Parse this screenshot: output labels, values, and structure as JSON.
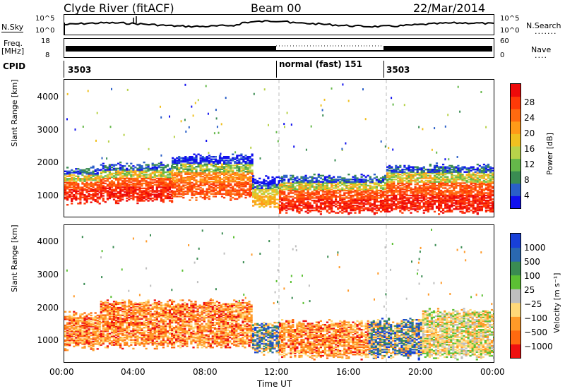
{
  "header": {
    "station": "Clyde River (fitACF)",
    "beam": "Beam 00",
    "date": "22/Mar/2014"
  },
  "noise_panel": {
    "left_label": "N.Sky",
    "right_label": "N.Search",
    "left_ticks": [
      "10^5",
      "10^0"
    ],
    "right_ticks": [
      "10^5",
      "10^0"
    ]
  },
  "freq_panel": {
    "left_label": "Freq.",
    "left_unit": "[MHz]",
    "right_label": "Nave",
    "left_ticks": [
      "18",
      "8"
    ],
    "right_ticks": [
      "60",
      "0"
    ]
  },
  "cpid_panel": {
    "label": "CPID",
    "segments": [
      {
        "start_hour": 0,
        "text": "3503"
      },
      {
        "start_hour": 12,
        "text": "normal (fast) 151"
      },
      {
        "start_hour": 18,
        "text": "3503"
      }
    ]
  },
  "x_axis": {
    "label": "Time UT",
    "ticks": [
      "00:00",
      "04:00",
      "08:00",
      "12:00",
      "16:00",
      "20:00",
      "00:00"
    ]
  },
  "chart_data": [
    {
      "type": "heatmap",
      "title": "",
      "xlabel": "Time UT",
      "ylabel": "Slant Range [km]",
      "x_range_hours": [
        0,
        24
      ],
      "ylim": [
        180,
        4600
      ],
      "y_ticks": [
        1000,
        2000,
        3000,
        4000
      ],
      "colorbar": {
        "label": "Power [dB]",
        "ticks": [
          "4",
          "8",
          "12",
          "16",
          "20",
          "24",
          "28"
        ],
        "colors": [
          "#1010ee",
          "#2a5fc8",
          "#3a8c52",
          "#65b84a",
          "#b8d24a",
          "#f0c020",
          "#ff9a18",
          "#ff6a10",
          "#ff3a08",
          "#ee0a0a"
        ]
      },
      "echo_bands": [
        {
          "t0": 0.0,
          "t1": 2.0,
          "r_low": 750,
          "r_high": 1600,
          "level": "high"
        },
        {
          "t0": 2.0,
          "t1": 6.0,
          "r_low": 800,
          "r_high": 1750,
          "level": "high"
        },
        {
          "t0": 6.0,
          "t1": 10.5,
          "r_low": 900,
          "r_high": 2000,
          "level": "medium"
        },
        {
          "t0": 10.5,
          "t1": 12.0,
          "r_low": 600,
          "r_high": 1300,
          "level": "low"
        },
        {
          "t0": 12.0,
          "t1": 18.0,
          "r_low": 450,
          "r_high": 1350,
          "level": "high"
        },
        {
          "t0": 18.0,
          "t1": 24.0,
          "r_low": 450,
          "r_high": 1700,
          "level": "high"
        }
      ]
    },
    {
      "type": "heatmap",
      "title": "",
      "xlabel": "Time UT",
      "ylabel": "Slant Range [km]",
      "x_range_hours": [
        0,
        24
      ],
      "ylim": [
        180,
        4600
      ],
      "y_ticks": [
        1000,
        2000,
        3000,
        4000
      ],
      "colorbar": {
        "label": "Velocity [m s⁻¹]",
        "ticks": [
          "1000",
          "500",
          "100",
          "25",
          "−25",
          "−100",
          "−500",
          "−1000"
        ],
        "colors": [
          "#1840d8",
          "#2a68b0",
          "#3a8c52",
          "#5cc034",
          "#bebebe",
          "#ffd878",
          "#ff9a28",
          "#ff6a10",
          "#ee1010"
        ]
      },
      "echo_bands": [
        {
          "t0": 0.0,
          "t1": 2.0,
          "r_low": 750,
          "r_high": 1600,
          "flow": "away"
        },
        {
          "t0": 2.0,
          "t1": 10.5,
          "r_low": 800,
          "r_high": 2000,
          "flow": "away"
        },
        {
          "t0": 10.5,
          "t1": 12.0,
          "r_low": 600,
          "r_high": 1300,
          "flow": "mixed"
        },
        {
          "t0": 12.0,
          "t1": 17.0,
          "r_low": 450,
          "r_high": 1350,
          "flow": "away"
        },
        {
          "t0": 17.0,
          "t1": 20.0,
          "r_low": 450,
          "r_high": 1400,
          "flow": "mixed"
        },
        {
          "t0": 20.0,
          "t1": 24.0,
          "r_low": 450,
          "r_high": 1700,
          "flow": "weak"
        }
      ]
    }
  ]
}
